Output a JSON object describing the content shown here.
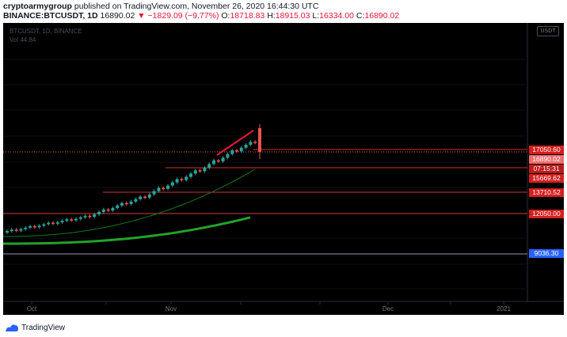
{
  "header": {
    "author": "cryptoarmygroup",
    "published_text": " published on TradingView.com, November 26, 2020 16:44:30 UTC",
    "symbol": "BINANCE:BTCUSDT, 1D",
    "last": "16890.02",
    "change": "▼ −1829.09 (−9.77%)",
    "o_label": "O:",
    "o_value": "18718.83",
    "h_label": "H:",
    "h_value": "18915.03",
    "l_label": "L:",
    "l_value": "16334.00",
    "c_label": "C:",
    "c_value": "16890.02"
  },
  "chart": {
    "watermark_symbol": "BTCUSDT, 1D, BINANCE",
    "watermark_vol": "Vol 44.84",
    "scale_chip": "USDT",
    "price_labels": [
      {
        "text": "17050.60",
        "style": "red"
      },
      {
        "text": "16890.02",
        "style": "light"
      },
      {
        "text": "07:15:31",
        "style": "dark"
      },
      {
        "text": "15669.62",
        "style": "red"
      },
      {
        "text": "13710.52",
        "style": "red"
      },
      {
        "text": "12050.00",
        "style": "red"
      },
      {
        "text": "9036.30",
        "style": "blue"
      }
    ],
    "x_ticks": [
      "Oct",
      "Nov",
      "Dec",
      "2021"
    ],
    "colors": {
      "up": "#26a69a",
      "down": "#ef5350",
      "level": "#d32f2f",
      "ma_fast": "#0c7a1c",
      "ma_slow": "#21a32a"
    }
  },
  "footer": {
    "brand": "TradingView"
  }
}
